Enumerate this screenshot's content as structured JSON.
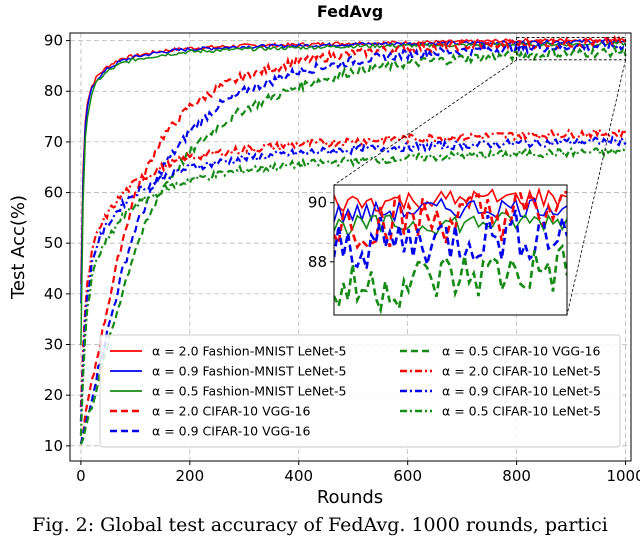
{
  "caption": "Fig. 2: Global test accuracy of FedAvg. 1000 rounds, partici",
  "colors": {
    "red": "#ff0000",
    "blue": "#0000ee",
    "green": "#158a15"
  },
  "chart_data": {
    "type": "line",
    "title": "FedAvg",
    "xlabel": "Rounds",
    "ylabel": "Test Acc(%)",
    "xlim": [
      -20,
      1010
    ],
    "ylim": [
      7,
      91.5
    ],
    "xticks": [
      0,
      200,
      400,
      600,
      800,
      1000
    ],
    "yticks": [
      10,
      20,
      30,
      40,
      50,
      60,
      70,
      80,
      90
    ],
    "grid": true,
    "legend_placement": "lower-center, two columns",
    "series": [
      {
        "name": "α = 2.0 Fashion-MNIST LeNet-5",
        "color": "red",
        "style": "solid",
        "x": [
          0,
          5,
          10,
          20,
          30,
          50,
          75,
          100,
          150,
          200,
          300,
          400,
          500,
          600,
          700,
          800,
          900,
          1000
        ],
        "y": [
          42,
          70,
          77,
          81,
          83,
          85,
          86.5,
          87,
          88,
          88.5,
          89,
          89.2,
          89.5,
          89.6,
          89.8,
          90,
          90.1,
          90.2
        ]
      },
      {
        "name": "α = 0.9 Fashion-MNIST LeNet-5",
        "color": "blue",
        "style": "solid",
        "x": [
          0,
          5,
          10,
          20,
          30,
          50,
          75,
          100,
          150,
          200,
          300,
          400,
          500,
          600,
          700,
          800,
          900,
          1000
        ],
        "y": [
          38,
          68,
          76,
          80.5,
          82.5,
          84.5,
          86,
          86.8,
          87.8,
          88.3,
          88.8,
          89,
          89.3,
          89.4,
          89.5,
          89.6,
          89.8,
          89.9
        ]
      },
      {
        "name": "α = 0.5 Fashion-MNIST LeNet-5",
        "color": "green",
        "style": "solid",
        "x": [
          0,
          5,
          10,
          20,
          30,
          50,
          75,
          100,
          150,
          200,
          300,
          400,
          500,
          600,
          700,
          800,
          900,
          1000
        ],
        "y": [
          30,
          65,
          74,
          79.5,
          82,
          84,
          85.5,
          86.3,
          87.2,
          87.8,
          88.3,
          88.6,
          88.9,
          89,
          89.1,
          89.2,
          89.3,
          89.4
        ]
      },
      {
        "name": "α = 2.0 CIFAR-10 VGG-16",
        "color": "red",
        "style": "dashed",
        "x": [
          0,
          10,
          25,
          50,
          75,
          100,
          150,
          200,
          250,
          300,
          400,
          500,
          600,
          700,
          800,
          900,
          1000
        ],
        "y": [
          10,
          17,
          25,
          38,
          50,
          60,
          71,
          77,
          80.5,
          83,
          86,
          87.5,
          88.5,
          89,
          89.3,
          89.5,
          89.7
        ]
      },
      {
        "name": "α = 0.9 CIFAR-10 VGG-16",
        "color": "blue",
        "style": "dashed",
        "x": [
          0,
          10,
          25,
          50,
          75,
          100,
          150,
          200,
          250,
          300,
          400,
          500,
          600,
          700,
          800,
          900,
          1000
        ],
        "y": [
          10,
          15,
          22,
          33,
          44,
          53,
          65,
          72,
          77,
          80,
          84,
          86,
          87.3,
          88,
          88.5,
          88.8,
          89
        ]
      },
      {
        "name": "α = 0.5 CIFAR-10 VGG-16",
        "color": "green",
        "style": "dashed",
        "x": [
          0,
          10,
          25,
          50,
          75,
          100,
          150,
          200,
          250,
          300,
          400,
          500,
          600,
          700,
          800,
          900,
          1000
        ],
        "y": [
          10,
          14,
          20,
          30,
          40,
          49,
          61,
          68,
          73,
          76.5,
          81,
          84,
          85.5,
          86.5,
          87,
          87.5,
          87.8
        ]
      },
      {
        "name": "α = 2.0 CIFAR-10 LeNet-5",
        "color": "red",
        "style": "dashdot",
        "x": [
          0,
          5,
          10,
          20,
          30,
          50,
          75,
          100,
          150,
          200,
          300,
          400,
          500,
          600,
          700,
          800,
          900,
          1000
        ],
        "y": [
          18,
          32,
          40,
          48,
          52,
          56,
          59.5,
          62,
          65,
          67,
          68.5,
          69.5,
          70.2,
          70.7,
          71,
          71.3,
          71.6,
          71.8
        ]
      },
      {
        "name": "α = 0.9 CIFAR-10 LeNet-5",
        "color": "blue",
        "style": "dashdot",
        "x": [
          0,
          5,
          10,
          20,
          30,
          50,
          75,
          100,
          150,
          200,
          300,
          400,
          500,
          600,
          700,
          800,
          900,
          1000
        ],
        "y": [
          15,
          30,
          38,
          46,
          50,
          54,
          57.5,
          60,
          63,
          65,
          66.8,
          67.8,
          68.5,
          69,
          69.4,
          69.7,
          70,
          70.2
        ]
      },
      {
        "name": "α = 0.5 CIFAR-10 LeNet-5",
        "color": "green",
        "style": "dashdot",
        "x": [
          0,
          5,
          10,
          20,
          30,
          50,
          75,
          100,
          150,
          200,
          300,
          400,
          500,
          600,
          700,
          800,
          900,
          1000
        ],
        "y": [
          12,
          27,
          35,
          43,
          47,
          51,
          55,
          57.5,
          60.5,
          62.5,
          64.5,
          65.5,
          66.3,
          66.8,
          67.3,
          67.6,
          67.9,
          68.1
        ]
      }
    ],
    "inset": {
      "xlim": [
        800,
        1000
      ],
      "ylim": [
        86.2,
        90.6
      ],
      "yticks": [
        88,
        90
      ]
    }
  }
}
